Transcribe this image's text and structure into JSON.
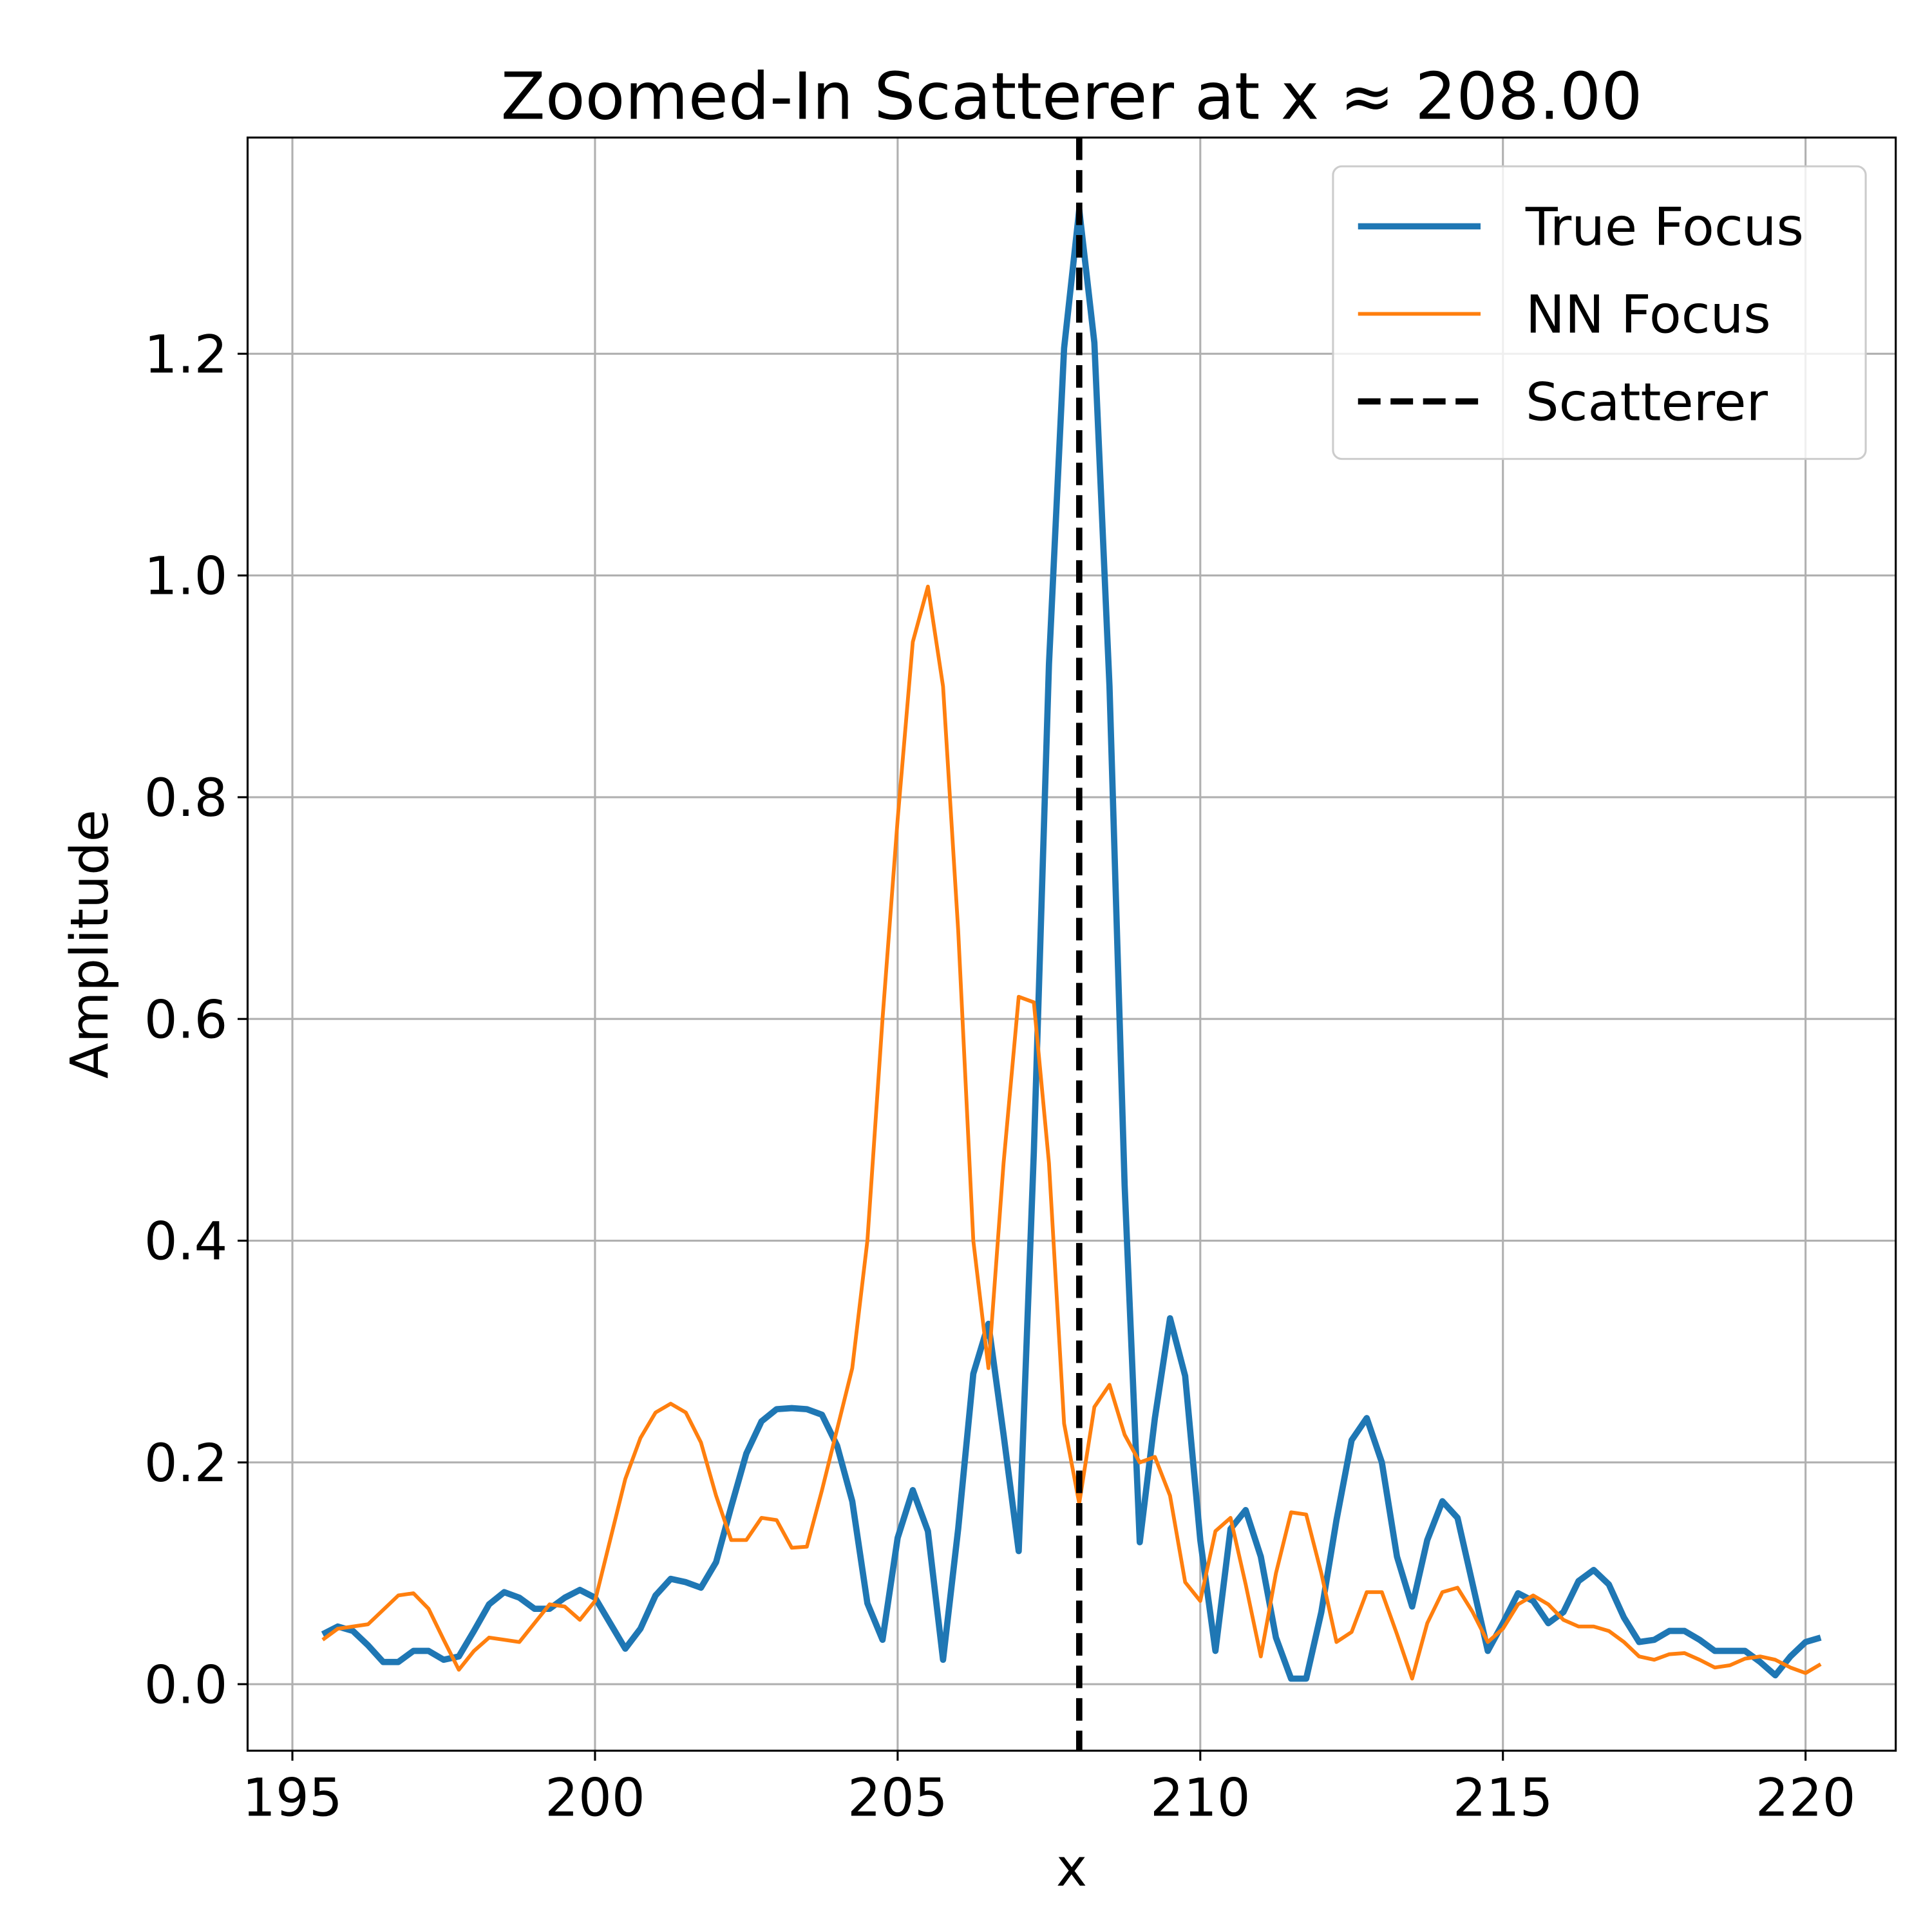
{
  "chart_data": {
    "type": "line",
    "title": "Zoomed-In Scatterer at x ≈ 208.00",
    "xlabel": "x",
    "ylabel": "Amplitude",
    "x": [
      195.5,
      195.75,
      196,
      196.25,
      196.5,
      196.75,
      197,
      197.25,
      197.5,
      197.75,
      198,
      198.25,
      198.5,
      198.75,
      199,
      199.25,
      199.5,
      199.75,
      200,
      200.25,
      200.5,
      200.75,
      201,
      201.25,
      201.5,
      201.75,
      202,
      202.25,
      202.5,
      202.75,
      203,
      203.25,
      203.5,
      203.75,
      204,
      204.25,
      204.5,
      204.75,
      205,
      205.25,
      205.5,
      205.75,
      206,
      206.25,
      206.5,
      206.75,
      207,
      207.25,
      207.5,
      207.75,
      208,
      208.25,
      208.5,
      208.75,
      209,
      209.25,
      209.5,
      209.75,
      210,
      210.25,
      210.5,
      210.75,
      211,
      211.25,
      211.5,
      211.75,
      212,
      212.25,
      212.5,
      212.75,
      213,
      213.25,
      213.5,
      213.75,
      214,
      214.25,
      214.5,
      214.75,
      215,
      215.25,
      215.5,
      215.75,
      216,
      216.25,
      216.5,
      216.75,
      217,
      217.25,
      217.5,
      217.75,
      218,
      218.25,
      218.5,
      218.75,
      219,
      219.25,
      219.5,
      219.75,
      220,
      220.25
    ],
    "series": [
      {
        "name": "True Focus",
        "color": "#1f77b4",
        "values": [
          0.045,
          0.052,
          0.048,
          0.035,
          0.02,
          0.02,
          0.03,
          0.03,
          0.022,
          0.025,
          0.048,
          0.072,
          0.083,
          0.078,
          0.068,
          0.068,
          0.078,
          0.085,
          0.078,
          0.055,
          0.032,
          0.05,
          0.08,
          0.095,
          0.092,
          0.087,
          0.11,
          0.16,
          0.208,
          0.237,
          0.248,
          0.249,
          0.248,
          0.243,
          0.215,
          0.165,
          0.073,
          0.04,
          0.132,
          0.175,
          0.138,
          0.022,
          0.14,
          0.28,
          0.325,
          0.225,
          0.12,
          0.48,
          0.92,
          1.205,
          1.33,
          1.21,
          0.9,
          0.45,
          0.128,
          0.24,
          0.33,
          0.278,
          0.13,
          0.03,
          0.14,
          0.157,
          0.115,
          0.042,
          0.005,
          0.005,
          0.065,
          0.148,
          0.22,
          0.24,
          0.2,
          0.115,
          0.07,
          0.13,
          0.165,
          0.15,
          0.09,
          0.03,
          0.055,
          0.082,
          0.075,
          0.055,
          0.065,
          0.093,
          0.103,
          0.09,
          0.06,
          0.038,
          0.04,
          0.048,
          0.048,
          0.04,
          0.03,
          0.03,
          0.03,
          0.02,
          0.008,
          0.025,
          0.038,
          0.042
        ]
      },
      {
        "name": "NN Focus",
        "color": "#ff7f0e",
        "values": [
          0.04,
          0.05,
          0.052,
          0.054,
          0.067,
          0.08,
          0.082,
          0.068,
          0.04,
          0.013,
          0.03,
          0.042,
          0.04,
          0.038,
          0.055,
          0.072,
          0.07,
          0.058,
          0.075,
          0.13,
          0.185,
          0.222,
          0.245,
          0.253,
          0.245,
          0.218,
          0.17,
          0.13,
          0.13,
          0.15,
          0.148,
          0.123,
          0.124,
          0.175,
          0.23,
          0.285,
          0.4,
          0.6,
          0.78,
          0.94,
          0.99,
          0.9,
          0.68,
          0.4,
          0.285,
          0.47,
          0.62,
          0.615,
          0.47,
          0.235,
          0.163,
          0.25,
          0.27,
          0.225,
          0.2,
          0.205,
          0.17,
          0.092,
          0.075,
          0.138,
          0.15,
          0.09,
          0.025,
          0.1,
          0.155,
          0.153,
          0.1,
          0.038,
          0.047,
          0.083,
          0.083,
          0.045,
          0.005,
          0.055,
          0.083,
          0.087,
          0.065,
          0.038,
          0.05,
          0.072,
          0.08,
          0.072,
          0.058,
          0.052,
          0.052,
          0.048,
          0.038,
          0.025,
          0.022,
          0.027,
          0.028,
          0.022,
          0.015,
          0.017,
          0.023,
          0.025,
          0.022,
          0.015,
          0.01,
          0.018
        ]
      }
    ],
    "vline": {
      "name": "Scatterer",
      "x": 208,
      "color": "#000000"
    },
    "xlim": [
      194.26,
      221.49
    ],
    "ylim": [
      -0.06,
      1.395
    ],
    "xticks": [
      195,
      200,
      205,
      210,
      215,
      220
    ],
    "yticks": [
      {
        "value": 0,
        "label": "0.0"
      },
      0.2,
      0.4,
      0.6,
      0.8,
      {
        "value": 1,
        "label": "1.0"
      },
      1.2
    ],
    "grid": true,
    "legend": "upper right"
  }
}
